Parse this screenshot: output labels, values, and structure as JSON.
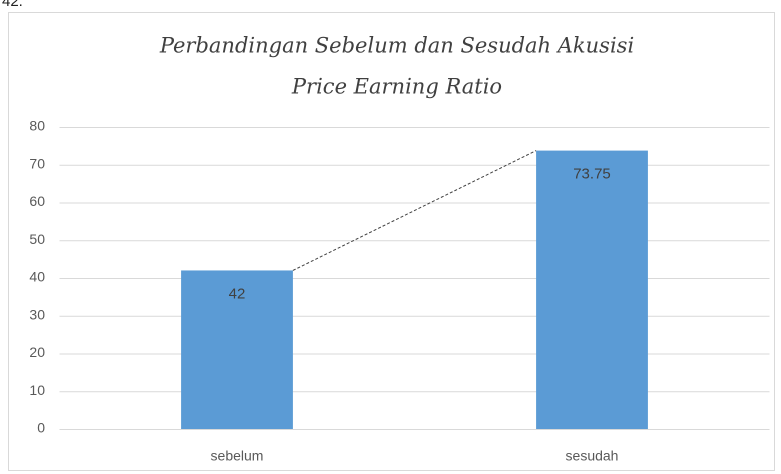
{
  "caption": "42.",
  "chart_data": {
    "type": "bar",
    "title": [
      "Perbandingan Sebelum dan Sesudah Akusisi",
      "Price Earning Ratio"
    ],
    "categories": [
      "sebelum",
      "sesudah"
    ],
    "values": [
      42,
      73.75
    ],
    "color": "#5b9bd5",
    "ylim": [
      0,
      80
    ],
    "yticks": [
      0,
      10,
      20,
      30,
      40,
      50,
      60,
      70,
      80
    ],
    "grid": true,
    "data_labels": true,
    "connector": true
  }
}
